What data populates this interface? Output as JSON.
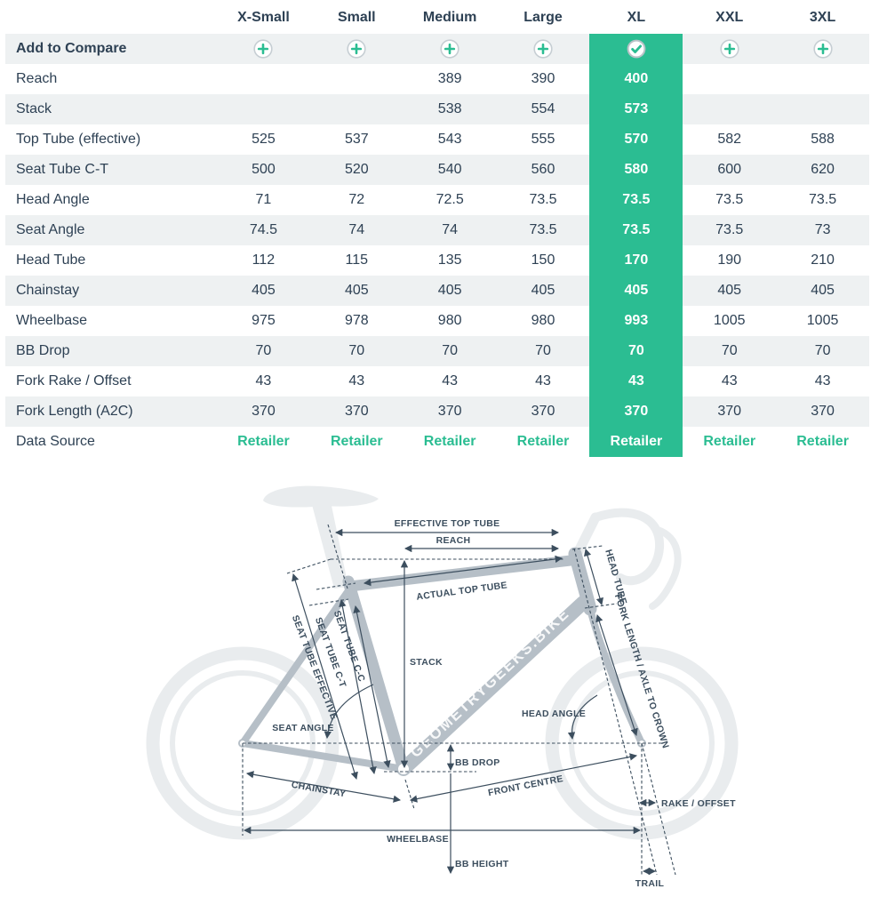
{
  "table": {
    "columns": [
      "X-Small",
      "Small",
      "Medium",
      "Large",
      "XL",
      "XXL",
      "3XL"
    ],
    "selected_column": "XL",
    "selected_index": 4,
    "compare_label": "Add to Compare",
    "rows": [
      {
        "label": "Reach",
        "values": [
          "",
          "",
          "389",
          "390",
          "400",
          "",
          ""
        ]
      },
      {
        "label": "Stack",
        "values": [
          "",
          "",
          "538",
          "554",
          "573",
          "",
          ""
        ]
      },
      {
        "label": "Top Tube (effective)",
        "values": [
          "525",
          "537",
          "543",
          "555",
          "570",
          "582",
          "588"
        ]
      },
      {
        "label": "Seat Tube C-T",
        "values": [
          "500",
          "520",
          "540",
          "560",
          "580",
          "600",
          "620"
        ]
      },
      {
        "label": "Head Angle",
        "values": [
          "71",
          "72",
          "72.5",
          "73.5",
          "73.5",
          "73.5",
          "73.5"
        ]
      },
      {
        "label": "Seat Angle",
        "values": [
          "74.5",
          "74",
          "74",
          "73.5",
          "73.5",
          "73.5",
          "73"
        ]
      },
      {
        "label": "Head Tube",
        "values": [
          "112",
          "115",
          "135",
          "150",
          "170",
          "190",
          "210"
        ]
      },
      {
        "label": "Chainstay",
        "values": [
          "405",
          "405",
          "405",
          "405",
          "405",
          "405",
          "405"
        ]
      },
      {
        "label": "Wheelbase",
        "values": [
          "975",
          "978",
          "980",
          "980",
          "993",
          "1005",
          "1005"
        ]
      },
      {
        "label": "BB Drop",
        "values": [
          "70",
          "70",
          "70",
          "70",
          "70",
          "70",
          "70"
        ]
      },
      {
        "label": "Fork Rake / Offset",
        "values": [
          "43",
          "43",
          "43",
          "43",
          "43",
          "43",
          "43"
        ]
      },
      {
        "label": "Fork Length (A2C)",
        "values": [
          "370",
          "370",
          "370",
          "370",
          "370",
          "370",
          "370"
        ]
      },
      {
        "label": "Data Source",
        "link_row": true,
        "values": [
          "Retailer",
          "Retailer",
          "Retailer",
          "Retailer",
          "Retailer",
          "Retailer",
          "Retailer"
        ]
      }
    ]
  },
  "colors": {
    "accent_green": "#2bbd92",
    "row_stripe": "#eef1f2",
    "text_dark": "#2e4154",
    "frame_gray": "#b6bfc7",
    "silhouette_gray": "#e9ecee"
  },
  "diagram": {
    "watermark": "GEOMETRYGEEKS.BIKE",
    "labels": {
      "effective_top_tube": "EFFECTIVE TOP TUBE",
      "reach": "REACH",
      "actual_top_tube": "ACTUAL TOP TUBE",
      "head_tube": "HEAD TUBE",
      "fork_length": "FORK LENGTH / AXLE TO CROWN",
      "seat_tube_cc": "SEAT TUBE C-C",
      "seat_tube_ct": "SEAT TUBE C-T",
      "seat_tube_effective": "SEAT TUBE EFFECTIVE",
      "stack": "STACK",
      "seat_angle": "SEAT ANGLE",
      "head_angle": "HEAD ANGLE",
      "bb_drop": "BB DROP",
      "chainstay": "CHAINSTAY",
      "front_centre": "FRONT CENTRE",
      "rake_offset": "RAKE / OFFSET",
      "wheelbase": "WHEELBASE",
      "bb_height": "BB HEIGHT",
      "trail": "TRAIL"
    }
  }
}
